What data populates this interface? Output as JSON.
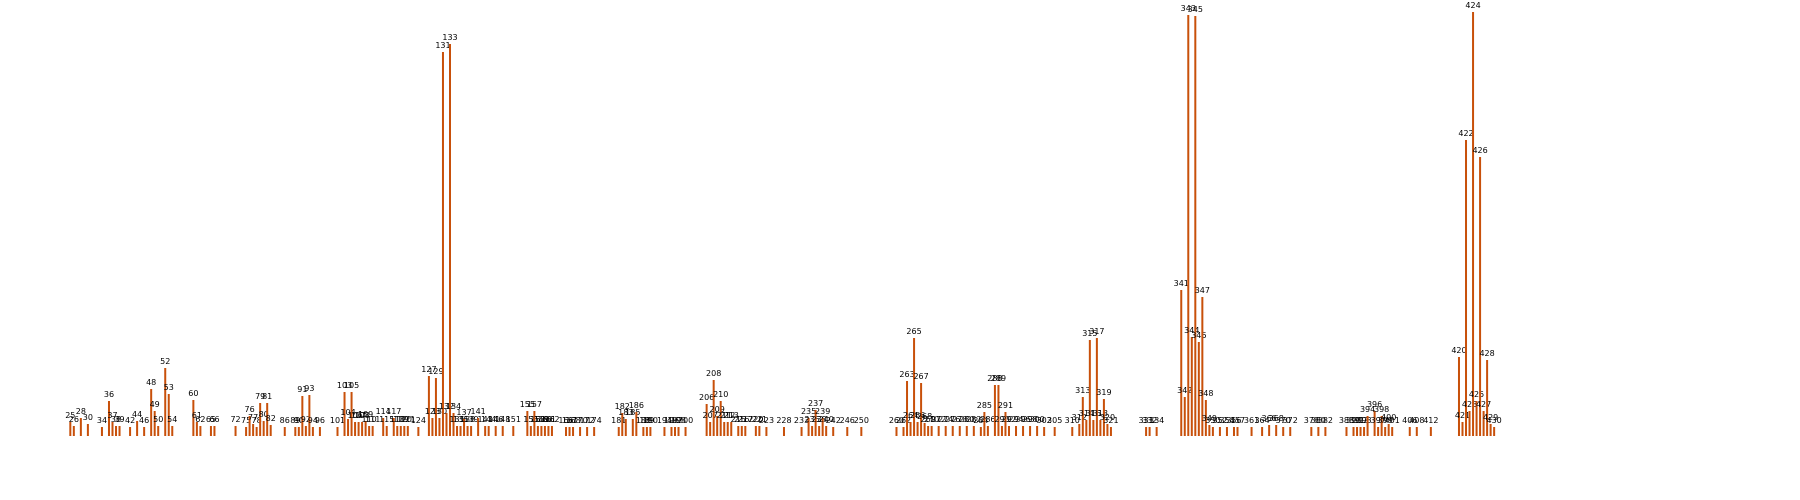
{
  "chart_data": {
    "type": "bar",
    "x": [
      25,
      26,
      28,
      30,
      34,
      36,
      37,
      38,
      39,
      42,
      44,
      46,
      48,
      49,
      50,
      52,
      53,
      54,
      60,
      61,
      62,
      65,
      66,
      72,
      75,
      76,
      77,
      78,
      79,
      80,
      81,
      82,
      86,
      89,
      90,
      91,
      92,
      93,
      94,
      96,
      101,
      103,
      104,
      105,
      106,
      107,
      108,
      109,
      110,
      111,
      114,
      115,
      117,
      118,
      119,
      120,
      121,
      124,
      127,
      128,
      129,
      130,
      131,
      132,
      133,
      134,
      135,
      136,
      137,
      138,
      139,
      141,
      143,
      144,
      146,
      148,
      151,
      155,
      156,
      157,
      158,
      159,
      160,
      161,
      162,
      166,
      167,
      168,
      170,
      172,
      174,
      181,
      182,
      183,
      185,
      186,
      188,
      189,
      190,
      194,
      196,
      197,
      198,
      200,
      206,
      207,
      208,
      209,
      210,
      211,
      212,
      213,
      215,
      216,
      217,
      220,
      221,
      223,
      228,
      233,
      235,
      236,
      237,
      238,
      239,
      240,
      242,
      246,
      250,
      260,
      262,
      263,
      264,
      265,
      266,
      267,
      268,
      269,
      270,
      272,
      274,
      276,
      278,
      280,
      282,
      284,
      285,
      286,
      288,
      289,
      290,
      291,
      292,
      294,
      296,
      298,
      300,
      302,
      305,
      310,
      312,
      313,
      314,
      315,
      316,
      317,
      318,
      319,
      320,
      321,
      331,
      332,
      334,
      341,
      342,
      343,
      344,
      345,
      346,
      347,
      348,
      349,
      350,
      352,
      354,
      356,
      357,
      361,
      364,
      366,
      368,
      370,
      372,
      378,
      380,
      382,
      388,
      390,
      391,
      392,
      393,
      394,
      396,
      397,
      398,
      399,
      400,
      401,
      406,
      408,
      412,
      420,
      421,
      422,
      423,
      424,
      425,
      426,
      427,
      428,
      429,
      430
    ],
    "values": [
      14,
      10,
      18,
      12,
      9,
      35,
      14,
      10,
      10,
      9,
      15,
      9,
      47,
      25,
      10,
      68,
      42,
      10,
      36,
      14,
      10,
      10,
      10,
      10,
      9,
      20,
      12,
      9,
      33,
      15,
      33,
      11,
      9,
      9,
      9,
      40,
      10,
      41,
      9,
      9,
      9,
      44,
      17,
      44,
      14,
      14,
      14,
      15,
      10,
      10,
      18,
      10,
      18,
      10,
      10,
      10,
      10,
      9,
      60,
      18,
      58,
      18,
      384,
      23,
      392,
      23,
      10,
      10,
      17,
      10,
      10,
      18,
      10,
      10,
      10,
      10,
      10,
      25,
      10,
      25,
      10,
      10,
      10,
      10,
      10,
      9,
      9,
      9,
      9,
      9,
      9,
      9,
      23,
      17,
      17,
      24,
      9,
      9,
      9,
      9,
      9,
      9,
      9,
      9,
      32,
      14,
      56,
      20,
      35,
      14,
      14,
      14,
      10,
      10,
      10,
      10,
      10,
      9,
      9,
      9,
      18,
      10,
      26,
      10,
      18,
      10,
      9,
      9,
      9,
      9,
      9,
      55,
      14,
      98,
      14,
      53,
      13,
      10,
      10,
      10,
      10,
      10,
      10,
      10,
      10,
      9,
      24,
      10,
      51,
      51,
      10,
      24,
      10,
      10,
      10,
      10,
      10,
      9,
      9,
      9,
      12,
      39,
      16,
      96,
      16,
      98,
      16,
      37,
      12,
      9,
      9,
      9,
      9,
      146,
      39,
      421,
      99,
      420,
      94,
      139,
      36,
      11,
      9,
      9,
      9,
      9,
      9,
      9,
      9,
      11,
      11,
      9,
      9,
      9,
      9,
      9,
      9,
      9,
      9,
      9,
      9,
      20,
      25,
      9,
      20,
      9,
      12,
      9,
      9,
      9,
      9,
      79,
      14,
      296,
      25,
      424,
      35,
      279,
      25,
      76,
      12,
      9
    ],
    "color": "#c8500a",
    "xlim": [
      5,
      517
    ],
    "ylim": [
      0,
      430
    ]
  }
}
